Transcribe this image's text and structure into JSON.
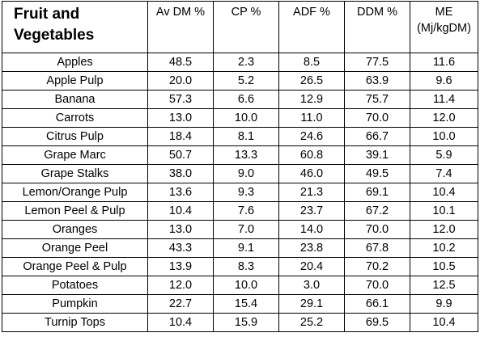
{
  "table": {
    "headers": [
      {
        "lines": [
          "Fruit and",
          "Vegetables"
        ]
      },
      {
        "lines": [
          "Av DM %"
        ]
      },
      {
        "lines": [
          "CP %"
        ]
      },
      {
        "lines": [
          "ADF %"
        ]
      },
      {
        "lines": [
          "DDM %"
        ]
      },
      {
        "lines": [
          "ME",
          "(Mj/kgDM)"
        ]
      }
    ],
    "rows": [
      [
        "Apples",
        "48.5",
        "2.3",
        "8.5",
        "77.5",
        "11.6"
      ],
      [
        "Apple Pulp",
        "20.0",
        "5.2",
        "26.5",
        "63.9",
        "9.6"
      ],
      [
        "Banana",
        "57.3",
        "6.6",
        "12.9",
        "75.7",
        "11.4"
      ],
      [
        "Carrots",
        "13.0",
        "10.0",
        "11.0",
        "70.0",
        "12.0"
      ],
      [
        "Citrus Pulp",
        "18.4",
        "8.1",
        "24.6",
        "66.7",
        "10.0"
      ],
      [
        "Grape Marc",
        "50.7",
        "13.3",
        "60.8",
        "39.1",
        "5.9"
      ],
      [
        "Grape Stalks",
        "38.0",
        "9.0",
        "46.0",
        "49.5",
        "7.4"
      ],
      [
        "Lemon/Orange Pulp",
        "13.6",
        "9.3",
        "21.3",
        "69.1",
        "10.4"
      ],
      [
        "Lemon Peel & Pulp",
        "10.4",
        "7.6",
        "23.7",
        "67.2",
        "10.1"
      ],
      [
        "Oranges",
        "13.0",
        "7.0",
        "14.0",
        "70.0",
        "12.0"
      ],
      [
        "Orange Peel",
        "43.3",
        "9.1",
        "23.8",
        "67.8",
        "10.2"
      ],
      [
        "Orange Peel & Pulp",
        "13.9",
        "8.3",
        "20.4",
        "70.2",
        "10.5"
      ],
      [
        "Potatoes",
        "12.0",
        "10.0",
        "3.0",
        "70.0",
        "12.5"
      ],
      [
        "Pumpkin",
        "22.7",
        "15.4",
        "29.1",
        "66.1",
        "9.9"
      ],
      [
        "Turnip Tops",
        "10.4",
        "15.9",
        "25.2",
        "69.5",
        "10.4"
      ]
    ]
  }
}
